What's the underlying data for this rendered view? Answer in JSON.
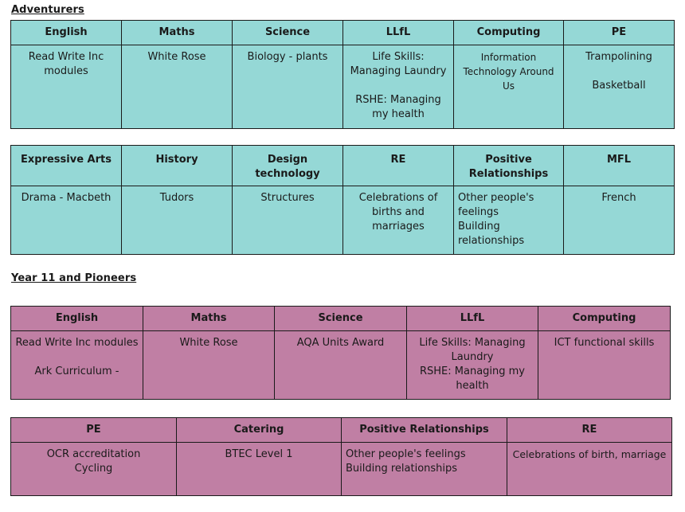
{
  "adventurers": {
    "title": "Adventurers",
    "table1": {
      "headers": [
        "English",
        "Maths",
        "Science",
        "LLfL",
        "Computing",
        "PE"
      ],
      "cells": [
        [
          "Read Write Inc modules"
        ],
        [
          "White Rose"
        ],
        [
          "Biology - plants"
        ],
        [
          "Life Skills: Managing Laundry",
          "RSHE: Managing my health"
        ],
        [
          "Information Technology Around Us"
        ],
        [
          "Trampolining",
          "Basketball"
        ]
      ]
    },
    "table2": {
      "headers": [
        "Expressive Arts",
        "History",
        "Design technology",
        "RE",
        "Positive Relationships",
        "MFL"
      ],
      "cells": [
        [
          "Drama - Macbeth"
        ],
        [
          "Tudors"
        ],
        [
          "Structures"
        ],
        [
          "Celebrations of births and marriages"
        ],
        [
          "Other people's feelings",
          "Building relationships"
        ],
        [
          "French"
        ]
      ]
    }
  },
  "year11": {
    "title": "Year 11 and Pioneers",
    "table1": {
      "headers": [
        "English",
        "Maths",
        "Science",
        "LLfL",
        "Computing"
      ],
      "cells": [
        [
          "Read Write Inc modules",
          "Ark Curriculum -"
        ],
        [
          "White Rose"
        ],
        [
          "AQA Units Award"
        ],
        [
          "Life Skills: Managing Laundry",
          "RSHE: Managing my health"
        ],
        [
          "ICT functional skills"
        ]
      ]
    },
    "table2": {
      "headers": [
        "PE",
        "Catering",
        "Positive Relationships",
        "RE"
      ],
      "cells": [
        [
          "OCR accreditation",
          "Cycling"
        ],
        [
          "BTEC Level 1"
        ],
        [
          "Other people's feelings",
          "Building relationships"
        ],
        [
          "Celebrations of birth, marriage"
        ]
      ]
    }
  },
  "colors": {
    "adventurers_fill": "#95d8d6",
    "year11_fill": "#c07fa4",
    "border": "#1a1a1a"
  }
}
